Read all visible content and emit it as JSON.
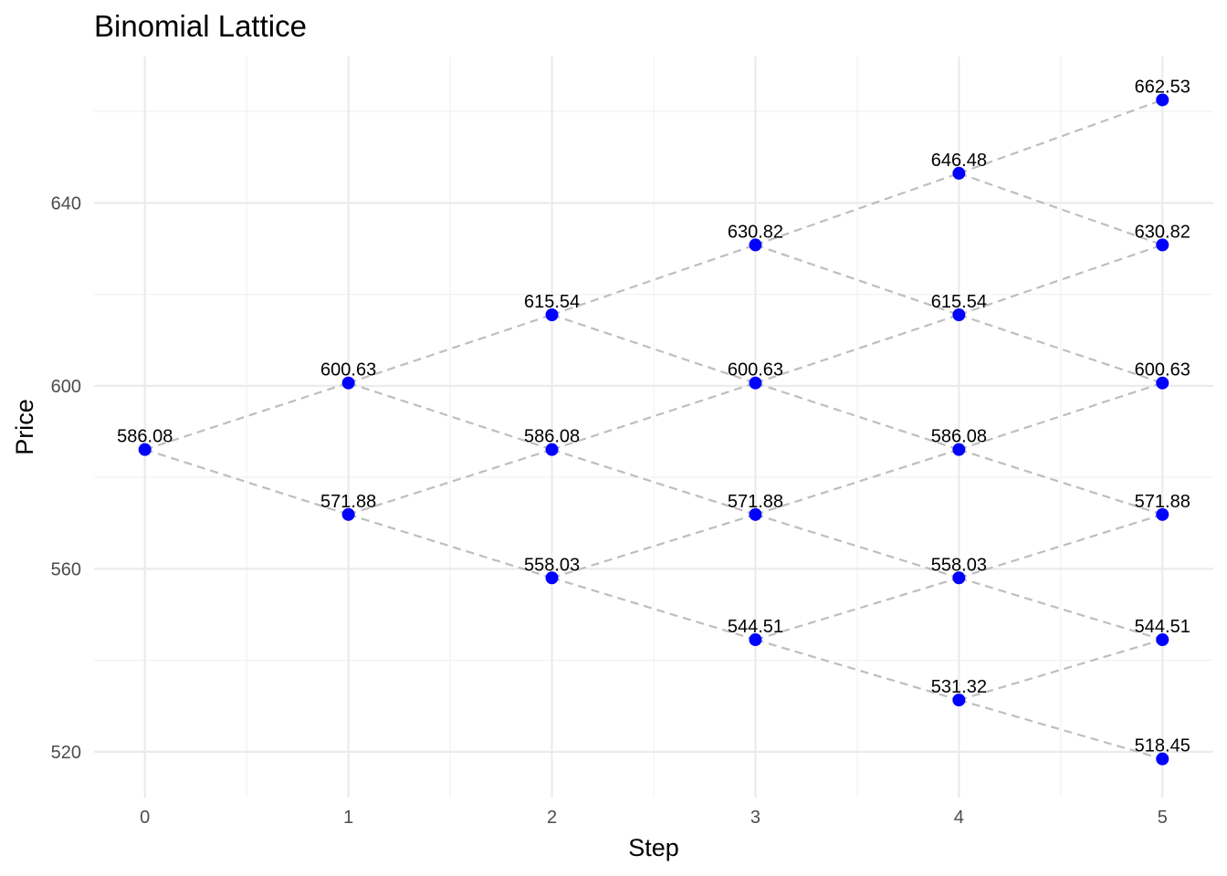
{
  "chart_data": {
    "type": "scatter",
    "title": "Binomial Lattice",
    "xlabel": "Step",
    "ylabel": "Price",
    "xlim": [
      -0.25,
      5.25
    ],
    "ylim": [
      510,
      672
    ],
    "x_ticks": [
      0,
      1,
      2,
      3,
      4,
      5
    ],
    "y_ticks": [
      520,
      560,
      600,
      640
    ],
    "grid": true,
    "legend": "none",
    "point_color": "#0000ff",
    "edge_color": "#bebebe",
    "edge_style": "dashed",
    "nodes": [
      {
        "x": 0,
        "y": 586.08,
        "label": "586.08"
      },
      {
        "x": 1,
        "y": 600.63,
        "label": "600.63"
      },
      {
        "x": 1,
        "y": 571.88,
        "label": "571.88"
      },
      {
        "x": 2,
        "y": 615.54,
        "label": "615.54"
      },
      {
        "x": 2,
        "y": 586.08,
        "label": "586.08"
      },
      {
        "x": 2,
        "y": 558.03,
        "label": "558.03"
      },
      {
        "x": 3,
        "y": 630.82,
        "label": "630.82"
      },
      {
        "x": 3,
        "y": 600.63,
        "label": "600.63"
      },
      {
        "x": 3,
        "y": 571.88,
        "label": "571.88"
      },
      {
        "x": 3,
        "y": 544.51,
        "label": "544.51"
      },
      {
        "x": 4,
        "y": 646.48,
        "label": "646.48"
      },
      {
        "x": 4,
        "y": 615.54,
        "label": "615.54"
      },
      {
        "x": 4,
        "y": 586.08,
        "label": "586.08"
      },
      {
        "x": 4,
        "y": 558.03,
        "label": "558.03"
      },
      {
        "x": 4,
        "y": 531.32,
        "label": "531.32"
      },
      {
        "x": 5,
        "y": 662.53,
        "label": "662.53"
      },
      {
        "x": 5,
        "y": 630.82,
        "label": "630.82"
      },
      {
        "x": 5,
        "y": 600.63,
        "label": "600.63"
      },
      {
        "x": 5,
        "y": 571.88,
        "label": "571.88"
      },
      {
        "x": 5,
        "y": 544.51,
        "label": "544.51"
      },
      {
        "x": 5,
        "y": 518.45,
        "label": "518.45"
      }
    ]
  }
}
